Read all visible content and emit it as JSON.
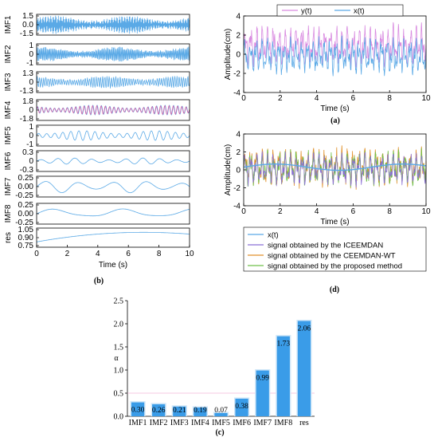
{
  "chart_data": [
    {
      "panel": "(a)",
      "type": "line",
      "xlabel": "Time (s)",
      "ylabel": "Amplitude(cm)",
      "xlim": [
        0,
        10
      ],
      "ylim": [
        -4,
        4
      ],
      "xticks": [
        "0",
        "2",
        "4",
        "6",
        "8",
        "10"
      ],
      "yticks": [
        "-4",
        "-2",
        "0",
        "2",
        "4"
      ],
      "legend": "top",
      "series": [
        {
          "name": "y(t)",
          "color": "#d98be0"
        },
        {
          "name": "x(t)",
          "color": "#5aa9e6"
        }
      ]
    },
    {
      "panel": "(b)",
      "type": "line",
      "xlabel": "Time (s)",
      "xlim": [
        0,
        10
      ],
      "xticks": [
        "0",
        "2",
        "4",
        "6",
        "8",
        "10"
      ],
      "subplots": [
        {
          "name": "IMF1",
          "ticks": [
            "1.5",
            "0.0",
            "-1.5"
          ],
          "amp": 0.95,
          "freq": 22,
          "color": "#5aa9e6"
        },
        {
          "name": "IMF2",
          "ticks": [
            "1",
            "0",
            "-1"
          ],
          "amp": 0.75,
          "freq": 12,
          "color": "#5aa9e6"
        },
        {
          "name": "IMF3",
          "ticks": [
            "1.3",
            "0",
            "-1.3"
          ],
          "amp": 0.6,
          "freq": 7,
          "color": "#5aa9e6"
        },
        {
          "name": "IMF4",
          "ticks": [
            "1.8",
            "0",
            "-1.8"
          ],
          "amp": 0.55,
          "freq": 3.6,
          "color": "#5aa9e6",
          "overlay": "#e05aa0"
        },
        {
          "name": "IMF5",
          "ticks": [
            "1",
            "0",
            "-1"
          ],
          "amp": 0.55,
          "freq": 1.9,
          "color": "#5aa9e6"
        },
        {
          "name": "IMF6",
          "ticks": [
            "0.3",
            "0",
            "-0.3"
          ],
          "amp": 0.35,
          "freq": 0.9,
          "color": "#5aa9e6"
        },
        {
          "name": "IMF7",
          "ticks": [
            "0.25",
            "0.00",
            "-0.25"
          ],
          "amp": 0.7,
          "freq": 0.45,
          "color": "#5aa9e6"
        },
        {
          "name": "IMF8",
          "ticks": [
            "0.25",
            "0.00",
            "-0.25"
          ],
          "amp": 0.55,
          "freq": 0.22,
          "color": "#5aa9e6"
        },
        {
          "name": "res",
          "ticks": [
            "1.05",
            "0.90",
            "0.75"
          ],
          "amp": 0.3,
          "freq": 0.08,
          "color": "#5aa9e6"
        }
      ]
    },
    {
      "panel": "(c)",
      "type": "bar",
      "ylabel": "α",
      "ylim": [
        0,
        2.5
      ],
      "yticks": [
        "0.0",
        "0.5",
        "1.0",
        "1.5",
        "2.0",
        "2.5"
      ],
      "threshold": 0.5,
      "categories": [
        "IMF1",
        "IMF2",
        "IMF3",
        "IMF4",
        "IMF5",
        "IMF6",
        "IMF7",
        "IMF8",
        "res"
      ],
      "values": [
        0.3,
        0.26,
        0.21,
        0.19,
        0.07,
        0.38,
        0.99,
        1.73,
        2.06
      ],
      "labels": [
        "0.30",
        "0.26",
        "0.21",
        "0.19",
        "0.07",
        "0.38",
        "0.99",
        "1.73",
        "2.06"
      ],
      "color": "#3a9ce8"
    },
    {
      "panel": "(d)",
      "type": "line",
      "xlabel": "Time (s)",
      "ylabel": "Amplitude(cm)",
      "xlim": [
        0,
        10
      ],
      "ylim": [
        -4,
        4
      ],
      "xticks": [
        "0",
        "2",
        "4",
        "6",
        "8",
        "10"
      ],
      "yticks": [
        "-4",
        "-2",
        "0",
        "2",
        "4"
      ],
      "legend": "bottom",
      "series": [
        {
          "name": "x(t)",
          "color": "#5aa9e6"
        },
        {
          "name": "signal obtained by the ICEEMDAN",
          "color": "#8a6fd6"
        },
        {
          "name": "signal obtained by the CEEMDAN-WT",
          "color": "#e0902a"
        },
        {
          "name": "signal obtained by the proposed method",
          "color": "#6fc04a"
        }
      ]
    }
  ]
}
